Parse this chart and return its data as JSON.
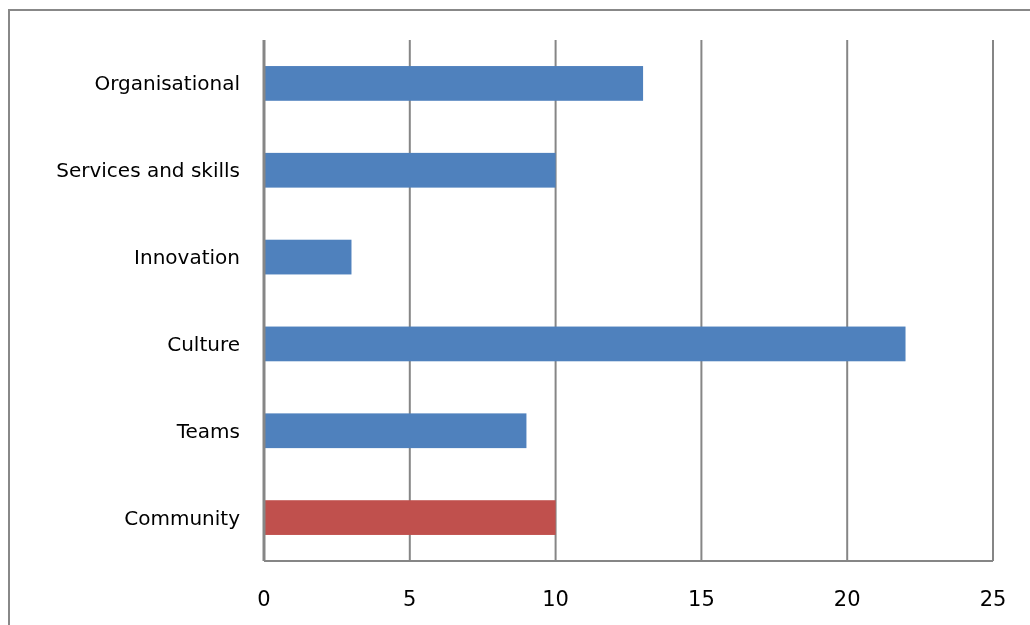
{
  "chart_data": {
    "type": "bar",
    "orientation": "horizontal",
    "categories": [
      "Organisational",
      "Services and skills",
      "Innovation",
      "Culture",
      "Teams",
      "Community"
    ],
    "values": [
      13,
      10,
      3,
      22,
      9,
      10
    ],
    "colors": [
      "#4f81bd",
      "#4f81bd",
      "#4f81bd",
      "#4f81bd",
      "#4f81bd",
      "#c0504d"
    ],
    "xlim": [
      0,
      25
    ],
    "xticks": [
      0,
      5,
      10,
      15,
      20,
      25
    ],
    "grid": "x"
  }
}
